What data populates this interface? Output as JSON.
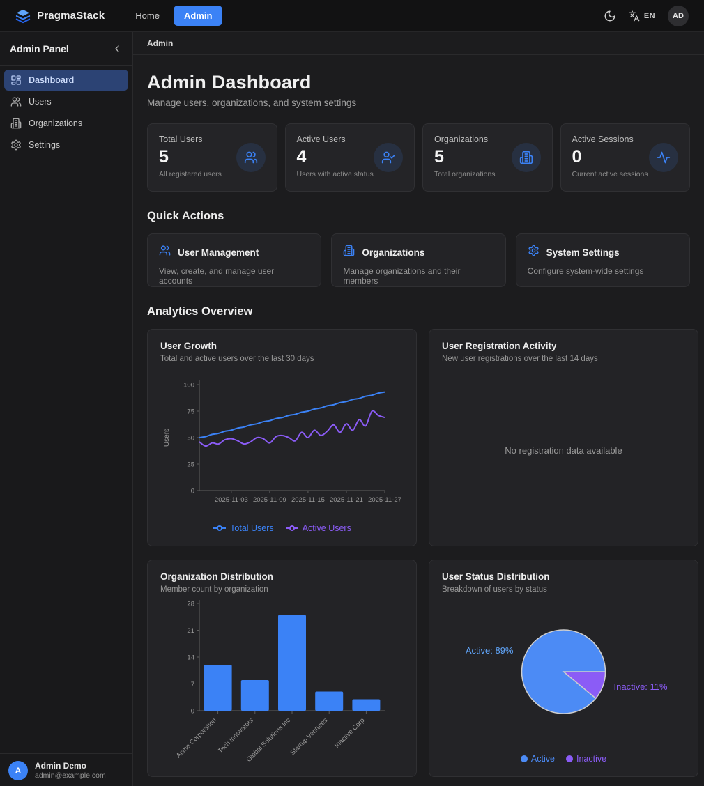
{
  "navbar": {
    "brand": "PragmaStack",
    "links": [
      {
        "label": "Home",
        "active": false
      },
      {
        "label": "Admin",
        "active": true
      }
    ],
    "language": "EN",
    "avatar_initials": "AD"
  },
  "sidebar": {
    "title": "Admin Panel",
    "items": [
      {
        "label": "Dashboard",
        "icon": "dashboard",
        "active": true
      },
      {
        "label": "Users",
        "icon": "users",
        "active": false
      },
      {
        "label": "Organizations",
        "icon": "building",
        "active": false
      },
      {
        "label": "Settings",
        "icon": "settings",
        "active": false
      }
    ],
    "user": {
      "initial": "A",
      "name": "Admin Demo",
      "email": "admin@example.com"
    }
  },
  "breadcrumb": "Admin",
  "header": {
    "title": "Admin Dashboard",
    "subtitle": "Manage users, organizations, and system settings"
  },
  "stats": [
    {
      "label": "Total Users",
      "value": "5",
      "description": "All registered users",
      "icon": "users"
    },
    {
      "label": "Active Users",
      "value": "4",
      "description": "Users with active status",
      "icon": "user-check"
    },
    {
      "label": "Organizations",
      "value": "5",
      "description": "Total organizations",
      "icon": "building"
    },
    {
      "label": "Active Sessions",
      "value": "0",
      "description": "Current active sessions",
      "icon": "activity"
    }
  ],
  "quick_actions": {
    "heading": "Quick Actions",
    "items": [
      {
        "title": "User Management",
        "description": "View, create, and manage user accounts",
        "icon": "users"
      },
      {
        "title": "Organizations",
        "description": "Manage organizations and their members",
        "icon": "building"
      },
      {
        "title": "System Settings",
        "description": "Configure system-wide settings",
        "icon": "settings"
      }
    ]
  },
  "analytics_heading": "Analytics Overview",
  "colors": {
    "accent": "#3b82f6",
    "purple": "#8b5cf6",
    "line_total": "#3b82f6",
    "line_active": "#8b5cf6",
    "bar": "#3b82f6",
    "pie_active": "#4c8bf5",
    "pie_inactive": "#8b5cf6",
    "pie_label_active": "#60a5fa",
    "pie_label_inactive": "#8b5cf6",
    "axis": "#5f5f5f",
    "tick_text": "#9a9a9a"
  },
  "chart_data": [
    {
      "type": "line",
      "title": "User Growth",
      "subtitle": "Total and active users over the last 30 days",
      "ylabel": "Users",
      "ylim": [
        0,
        100
      ],
      "yticks": [
        0,
        25,
        50,
        75,
        100
      ],
      "xticks": [
        "2025-11-03",
        "2025-11-09",
        "2025-11-15",
        "2025-11-21",
        "2025-11-27"
      ],
      "xtick_indices": [
        5,
        11,
        17,
        23,
        29
      ],
      "legend_position": "bottom",
      "series": [
        {
          "name": "Total Users",
          "color_key": "line_total",
          "values": [
            50,
            51,
            53,
            54,
            56,
            57,
            59,
            60,
            62,
            63,
            65,
            66,
            68,
            69,
            71,
            72,
            74,
            75,
            77,
            78,
            80,
            81,
            83,
            84,
            86,
            87,
            89,
            90,
            92,
            93
          ]
        },
        {
          "name": "Active Users",
          "color_key": "line_active",
          "values": [
            46,
            42,
            45,
            44,
            48,
            49,
            47,
            44,
            46,
            50,
            49,
            45,
            51,
            52,
            50,
            47,
            55,
            50,
            57,
            52,
            56,
            62,
            55,
            63,
            57,
            67,
            61,
            75,
            71,
            69
          ]
        }
      ]
    },
    {
      "type": "empty",
      "title": "User Registration Activity",
      "subtitle": "New user registrations over the last 14 days",
      "empty_message": "No registration data available"
    },
    {
      "type": "bar",
      "title": "Organization Distribution",
      "subtitle": "Member count by organization",
      "categories": [
        "Acme Corporation",
        "Tech Innovators",
        "Global Solutions Inc",
        "Startup Ventures",
        "Inactive Corp"
      ],
      "values": [
        12,
        8,
        25,
        5,
        3
      ],
      "ylim": [
        0,
        28
      ],
      "yticks": [
        0,
        7,
        14,
        21,
        28
      ],
      "bar_color_key": "bar"
    },
    {
      "type": "pie",
      "title": "User Status Distribution",
      "subtitle": "Breakdown of users by status",
      "slices": [
        {
          "name": "Active",
          "pct": 89,
          "label": "Active: 89%",
          "color_key": "pie_active",
          "label_color_key": "pie_label_active"
        },
        {
          "name": "Inactive",
          "pct": 11,
          "label": "Inactive: 11%",
          "color_key": "pie_inactive",
          "label_color_key": "pie_label_inactive"
        }
      ],
      "legend_position": "bottom"
    }
  ]
}
